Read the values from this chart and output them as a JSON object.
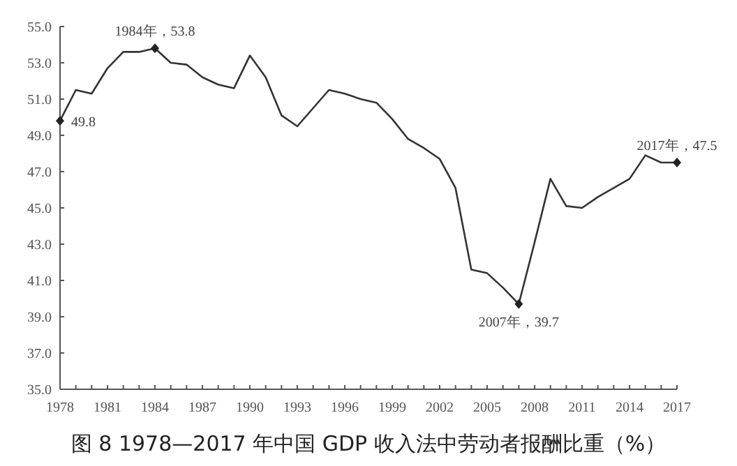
{
  "chart_data": {
    "type": "line",
    "title": "图 8  1978—2017 年中国 GDP 收入法中劳动者报酬比重（%）",
    "x": [
      1978,
      1979,
      1980,
      1981,
      1982,
      1983,
      1984,
      1985,
      1986,
      1987,
      1988,
      1989,
      1990,
      1991,
      1992,
      1993,
      1994,
      1995,
      1996,
      1997,
      1998,
      1999,
      2000,
      2001,
      2002,
      2003,
      2004,
      2005,
      2006,
      2007,
      2008,
      2009,
      2010,
      2011,
      2012,
      2013,
      2014,
      2015,
      2016,
      2017
    ],
    "series": [
      {
        "color": "#333333",
        "values": [
          49.8,
          51.5,
          51.3,
          52.7,
          53.6,
          53.6,
          53.8,
          53.0,
          52.9,
          52.2,
          51.8,
          51.6,
          53.4,
          52.2,
          50.1,
          49.5,
          50.5,
          51.5,
          51.3,
          51.0,
          50.8,
          49.9,
          48.8,
          48.3,
          47.7,
          46.1,
          41.6,
          41.4,
          40.6,
          39.7,
          43.1,
          46.6,
          45.1,
          45.0,
          45.6,
          46.1,
          46.6,
          47.9,
          47.5,
          47.5
        ]
      }
    ],
    "xlim": [
      1978,
      2017
    ],
    "xticks": [
      {
        "value": 1978,
        "label": "1978"
      },
      {
        "value": 1979,
        "label": null
      },
      {
        "value": 1980,
        "label": null
      },
      {
        "value": 1981,
        "label": "1981"
      },
      {
        "value": 1982,
        "label": null
      },
      {
        "value": 1983,
        "label": null
      },
      {
        "value": 1984,
        "label": "1984"
      },
      {
        "value": 1985,
        "label": null
      },
      {
        "value": 1986,
        "label": null
      },
      {
        "value": 1987,
        "label": "1987"
      },
      {
        "value": 1988,
        "label": null
      },
      {
        "value": 1989,
        "label": null
      },
      {
        "value": 1990,
        "label": "1990"
      },
      {
        "value": 1991,
        "label": null
      },
      {
        "value": 1992,
        "label": null
      },
      {
        "value": 1993,
        "label": "1993"
      },
      {
        "value": 1994,
        "label": null
      },
      {
        "value": 1995,
        "label": null
      },
      {
        "value": 1996,
        "label": "1996"
      },
      {
        "value": 1997,
        "label": null
      },
      {
        "value": 1998,
        "label": null
      },
      {
        "value": 1999,
        "label": "1999"
      },
      {
        "value": 2000,
        "label": null
      },
      {
        "value": 2001,
        "label": null
      },
      {
        "value": 2002,
        "label": "2002"
      },
      {
        "value": 2003,
        "label": null
      },
      {
        "value": 2004,
        "label": null
      },
      {
        "value": 2005,
        "label": "2005"
      },
      {
        "value": 2006,
        "label": null
      },
      {
        "value": 2007,
        "label": null
      },
      {
        "value": 2008,
        "label": "2008"
      },
      {
        "value": 2009,
        "label": null
      },
      {
        "value": 2010,
        "label": null
      },
      {
        "value": 2011,
        "label": "2011"
      },
      {
        "value": 2012,
        "label": null
      },
      {
        "value": 2013,
        "label": null
      },
      {
        "value": 2014,
        "label": "2014"
      },
      {
        "value": 2015,
        "label": null
      },
      {
        "value": 2016,
        "label": null
      },
      {
        "value": 2017,
        "label": "2017"
      }
    ],
    "ylim": [
      35,
      55
    ],
    "yticks": [
      {
        "value": 35,
        "label": "35.0"
      },
      {
        "value": 37,
        "label": "37.0"
      },
      {
        "value": 39,
        "label": "39.0"
      },
      {
        "value": 41,
        "label": "41.0"
      },
      {
        "value": 43,
        "label": "43.0"
      },
      {
        "value": 45,
        "label": "45.0"
      },
      {
        "value": 47,
        "label": "47.0"
      },
      {
        "value": 49,
        "label": "49.0"
      },
      {
        "value": 51,
        "label": "51.0"
      },
      {
        "value": 53,
        "label": "53.0"
      },
      {
        "value": 55,
        "label": "55.0"
      }
    ],
    "marker": "none",
    "line_style": "solid",
    "annotations": [
      {
        "text": "49.8",
        "x": 1978,
        "y": 49.8
      },
      {
        "text": "1984年，53.8",
        "x": 1984,
        "y": 53.8
      },
      {
        "text": "2007年，39.7",
        "x": 2007,
        "y": 39.7
      },
      {
        "text": "2017年，47.5",
        "x": 2017,
        "y": 47.5
      }
    ]
  }
}
